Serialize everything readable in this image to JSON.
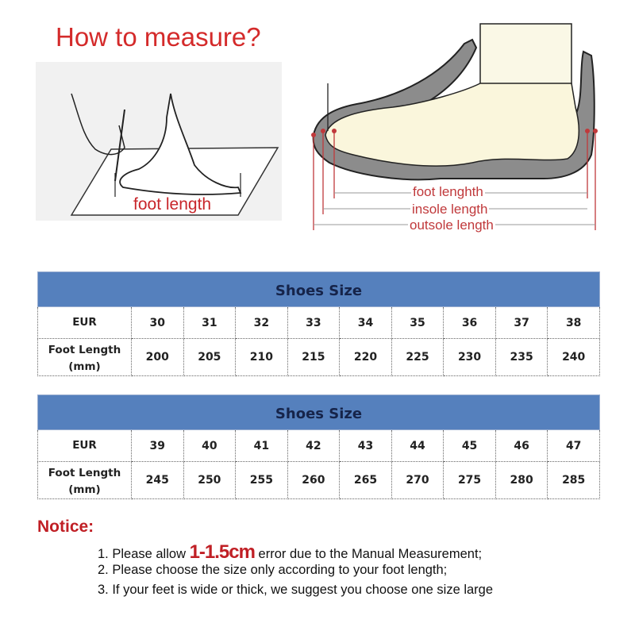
{
  "title": "How to measure?",
  "left_illustration": {
    "label": "foot length"
  },
  "shoe_illustration": {
    "labels": [
      "foot lenghth",
      "insole length",
      "outsole length"
    ]
  },
  "tables": [
    {
      "header": "Shoes Size",
      "row_labels": [
        "EUR",
        "Foot Length (mm)"
      ],
      "eur": [
        "30",
        "31",
        "32",
        "33",
        "34",
        "35",
        "36",
        "37",
        "38"
      ],
      "foot_length_mm": [
        "200",
        "205",
        "210",
        "215",
        "220",
        "225",
        "230",
        "235",
        "240"
      ]
    },
    {
      "header": "Shoes Size",
      "row_labels": [
        "EUR",
        "Foot Length (mm)"
      ],
      "eur": [
        "39",
        "40",
        "41",
        "42",
        "43",
        "44",
        "45",
        "46",
        "47"
      ],
      "foot_length_mm": [
        "245",
        "250",
        "255",
        "260",
        "265",
        "270",
        "275",
        "280",
        "285"
      ]
    }
  ],
  "notice": {
    "heading": "Notice:",
    "items": [
      {
        "before": "1. Please allow ",
        "highlight": "1-1.5cm",
        "after": " error due to the Manual Measurement;"
      },
      {
        "text": "2. Please choose the size only according to your foot length;"
      },
      {
        "text": "3. If your feet is wide or thick, we suggest you choose one size large"
      }
    ]
  },
  "colors": {
    "title_red": "#d42a2a",
    "table_header_blue": "#5580bd",
    "notice_red": "#c01f25"
  }
}
